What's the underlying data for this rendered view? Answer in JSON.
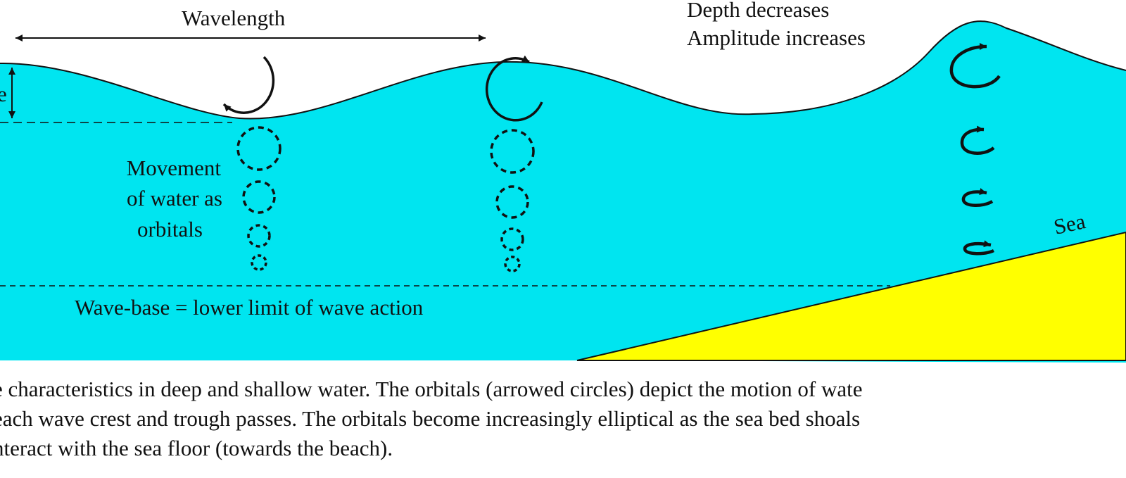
{
  "labels": {
    "wavelength": "Wavelength",
    "depth_line1": "Depth decreases",
    "depth_line2": "Amplitude increases",
    "movement_line1": "Movement",
    "movement_line2": "of water as",
    "movement_line3": "orbitals",
    "wave_base": "Wave-base = lower limit of wave action",
    "amplitude_fragment": "e",
    "sea_fragment": "Sea"
  },
  "caption": {
    "line1": "e characteristics in deep and shallow water. The orbitals (arrowed circles) depict the motion of wate",
    "line2": "each wave crest and trough passes. The orbitals become increasingly elliptical as the sea bed shoals",
    "line3": "nteract with the sea floor (towards the beach)."
  },
  "colors": {
    "water": "#00e5f0",
    "seabed": "#ffff00",
    "ink": "#111111"
  }
}
